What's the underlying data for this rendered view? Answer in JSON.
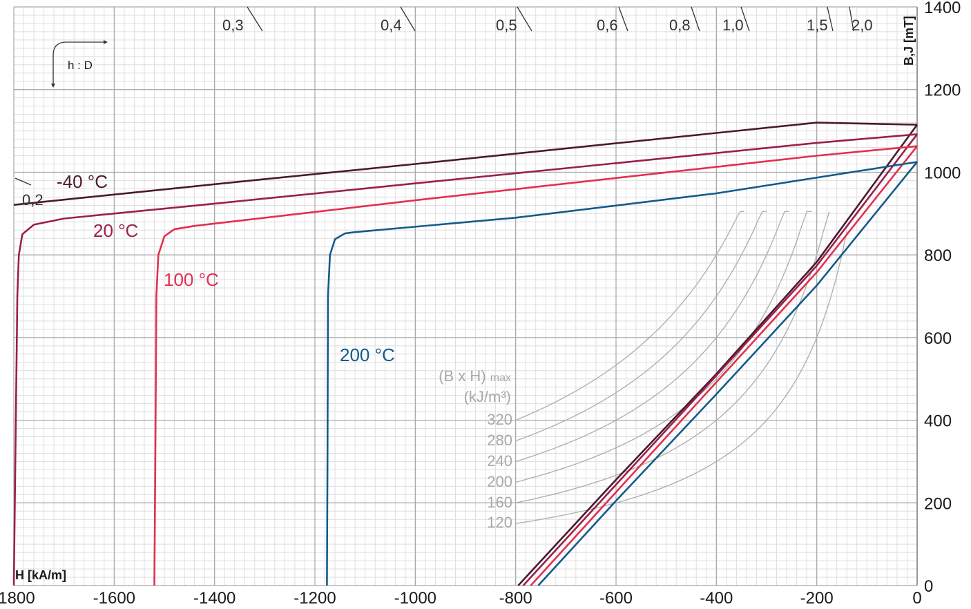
{
  "chart_data": {
    "type": "line",
    "x_label": "H [kA/m]",
    "y_label": "B,J [mT]",
    "x_range": [
      -1800,
      0
    ],
    "y_range": [
      0,
      1400
    ],
    "x_ticks": [
      -1800,
      -1600,
      -1400,
      -1200,
      -1000,
      -800,
      -600,
      -400,
      -200,
      0
    ],
    "y_ticks": [
      0,
      200,
      400,
      600,
      800,
      1000,
      1200,
      1400
    ],
    "grid": true,
    "series": [
      {
        "name": "-40 °C",
        "color": "#4a1a2a",
        "J_curve": [
          [
            -1800,
            921
          ],
          [
            -1400,
            971
          ],
          [
            -1000,
            1020
          ],
          [
            -600,
            1070
          ],
          [
            -200,
            1120
          ],
          [
            0,
            1115
          ]
        ],
        "B_line": [
          [
            -795,
            0
          ],
          [
            -600,
            256
          ],
          [
            -400,
            512
          ],
          [
            -200,
            783
          ],
          [
            0,
            1115
          ]
        ]
      },
      {
        "name": "20 °C",
        "color": "#9b1f4c",
        "J_curve": [
          [
            -1800,
            0
          ],
          [
            -1797,
            300
          ],
          [
            -1793,
            700
          ],
          [
            -1790,
            800
          ],
          [
            -1783,
            850
          ],
          [
            -1760,
            873
          ],
          [
            -1700,
            888
          ],
          [
            -1400,
            924
          ],
          [
            -1000,
            973
          ],
          [
            -600,
            1022
          ],
          [
            -200,
            1071
          ],
          [
            0,
            1092
          ]
        ],
        "B_line": [
          [
            -785,
            0
          ],
          [
            -600,
            244
          ],
          [
            -400,
            508
          ],
          [
            -200,
            774
          ],
          [
            0,
            1092
          ]
        ]
      },
      {
        "name": "100 °C",
        "color": "#e2304f",
        "J_curve": [
          [
            -1520,
            0
          ],
          [
            -1518,
            300
          ],
          [
            -1516,
            700
          ],
          [
            -1512,
            800
          ],
          [
            -1500,
            845
          ],
          [
            -1480,
            862
          ],
          [
            -1440,
            870
          ],
          [
            -1000,
            932
          ],
          [
            -600,
            986
          ],
          [
            -200,
            1040
          ],
          [
            0,
            1063
          ]
        ],
        "B_line": [
          [
            -770,
            0
          ],
          [
            -600,
            226
          ],
          [
            -400,
            492
          ],
          [
            -200,
            758
          ],
          [
            0,
            1063
          ]
        ]
      },
      {
        "name": "200 °C",
        "color": "#145a8a",
        "J_curve": [
          [
            -1176,
            0
          ],
          [
            -1175,
            300
          ],
          [
            -1174,
            700
          ],
          [
            -1170,
            800
          ],
          [
            -1160,
            838
          ],
          [
            -1140,
            852
          ],
          [
            -1120,
            855
          ],
          [
            -800,
            890
          ],
          [
            -400,
            949
          ],
          [
            0,
            1025
          ]
        ],
        "B_line": [
          [
            -755,
            0
          ],
          [
            -600,
            205
          ],
          [
            -400,
            463
          ],
          [
            -200,
            726
          ],
          [
            0,
            1025
          ]
        ]
      }
    ],
    "bh_max_label_line1": "(B x H)",
    "bh_max_label_sub": "max",
    "bh_max_unit": "(kJ/m³)",
    "bh_max_values": [
      320,
      280,
      240,
      200,
      160,
      120
    ],
    "bh_max_color": "#b0b0b0",
    "load_line_ratios": [
      "0,2",
      "0,3",
      "0,4",
      "0,5",
      "0,6",
      "0,8",
      "1,0",
      "1,5",
      "2,0"
    ],
    "ratio_label": "h : D"
  }
}
